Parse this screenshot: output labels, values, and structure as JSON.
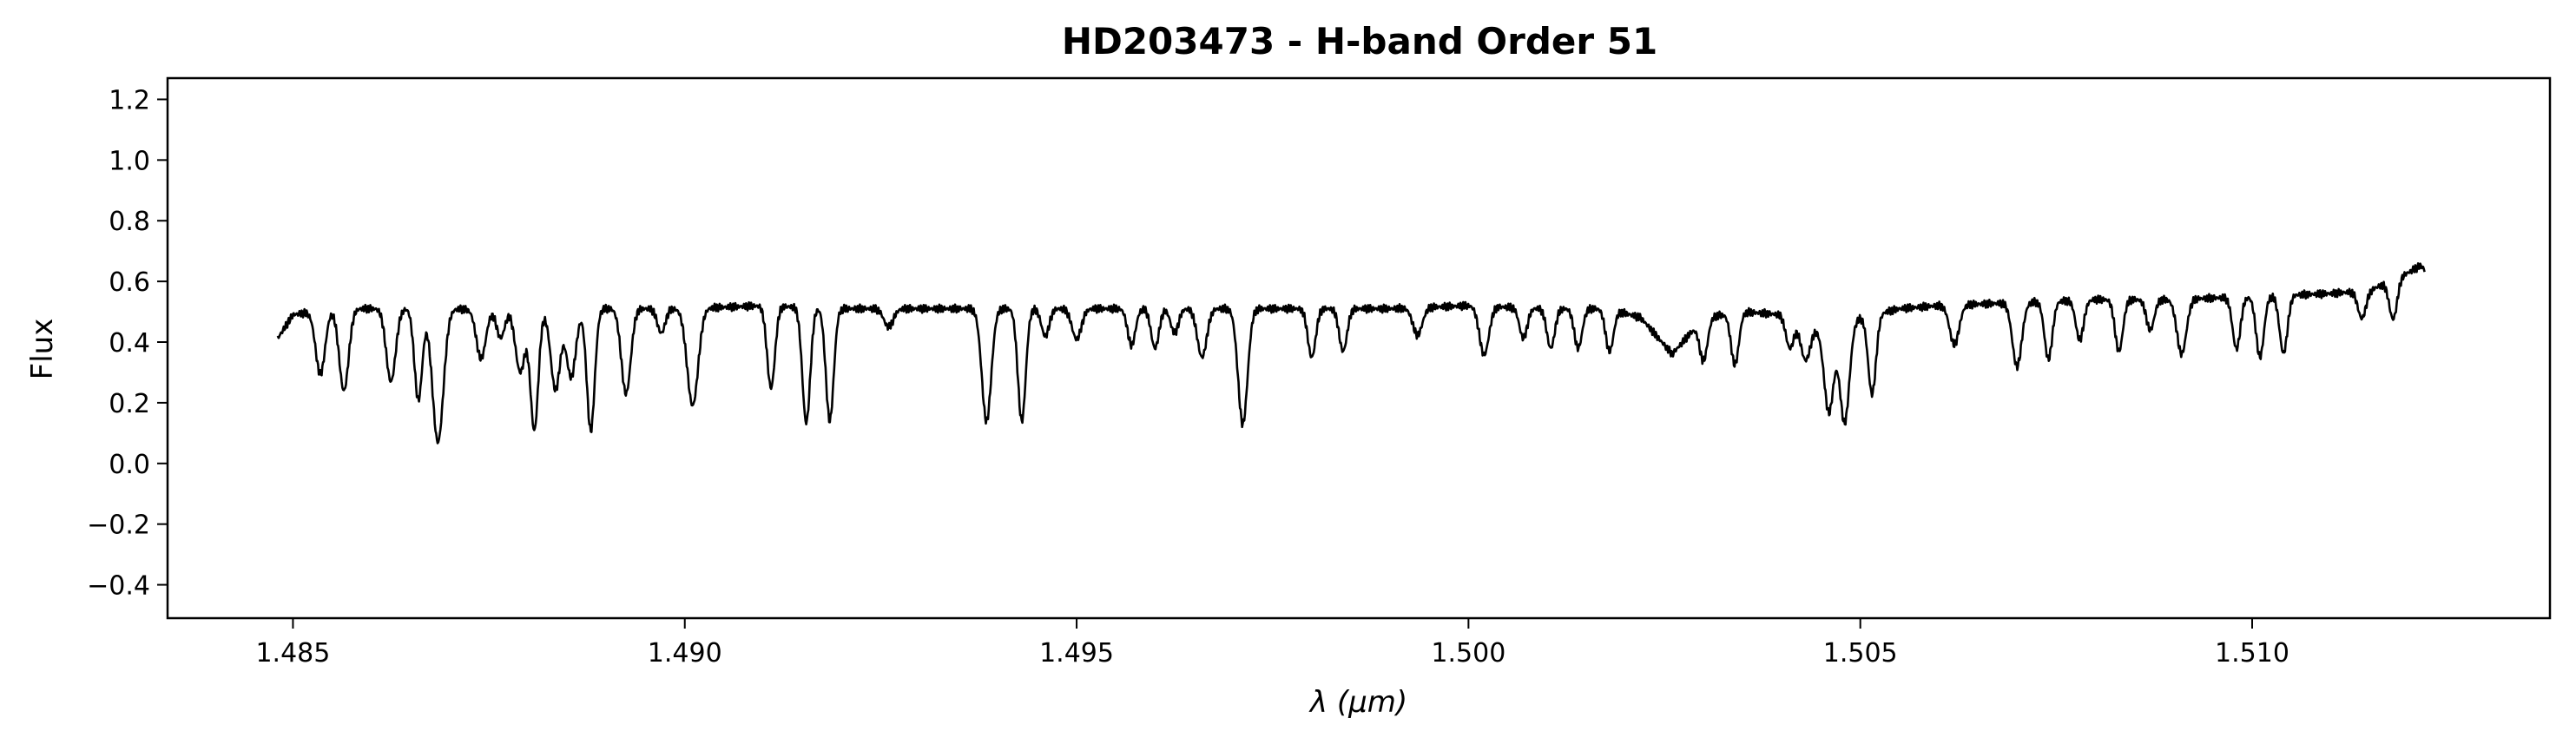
{
  "chart_data": {
    "type": "line",
    "title": "HD203473 - H-band Order 51",
    "xlabel": "λ (μm)",
    "ylabel": "Flux",
    "xlim": [
      1.4834,
      1.5138
    ],
    "ylim": [
      -0.51,
      1.27
    ],
    "xticks": [
      1.485,
      1.49,
      1.495,
      1.5,
      1.505,
      1.51
    ],
    "xtick_labels": [
      "1.485",
      "1.490",
      "1.495",
      "1.500",
      "1.505",
      "1.510"
    ],
    "yticks": [
      -0.4,
      -0.2,
      0.0,
      0.2,
      0.4,
      0.6,
      0.8,
      1.0,
      1.2
    ],
    "ytick_labels": [
      "−0.4",
      "−0.2",
      "0.0",
      "0.2",
      "0.4",
      "0.6",
      "0.8",
      "1.0",
      "1.2"
    ],
    "grid": false,
    "line_color": "#000000",
    "series": [
      {
        "baseline": [
          [
            1.4848,
            0.41
          ],
          [
            1.485,
            0.49
          ],
          [
            1.4855,
            0.51
          ],
          [
            1.486,
            0.51
          ],
          [
            1.487,
            0.51
          ],
          [
            1.488,
            0.5
          ],
          [
            1.489,
            0.51
          ],
          [
            1.49,
            0.51
          ],
          [
            1.491,
            0.52
          ],
          [
            1.492,
            0.51
          ],
          [
            1.493,
            0.51
          ],
          [
            1.494,
            0.51
          ],
          [
            1.495,
            0.51
          ],
          [
            1.496,
            0.51
          ],
          [
            1.497,
            0.51
          ],
          [
            1.498,
            0.51
          ],
          [
            1.499,
            0.51
          ],
          [
            1.5,
            0.52
          ],
          [
            1.501,
            0.51
          ],
          [
            1.5018,
            0.51
          ],
          [
            1.5022,
            0.48
          ],
          [
            1.5026,
            0.36
          ],
          [
            1.503,
            0.48
          ],
          [
            1.5035,
            0.5
          ],
          [
            1.504,
            0.49
          ],
          [
            1.5045,
            0.44
          ],
          [
            1.505,
            0.48
          ],
          [
            1.5055,
            0.51
          ],
          [
            1.506,
            0.52
          ],
          [
            1.507,
            0.53
          ],
          [
            1.508,
            0.54
          ],
          [
            1.509,
            0.54
          ],
          [
            1.51,
            0.55
          ],
          [
            1.511,
            0.56
          ],
          [
            1.5115,
            0.57
          ],
          [
            1.512,
            0.63
          ],
          [
            1.5122,
            0.66
          ]
        ],
        "absorption_lines": [
          [
            1.48535,
            0.21,
            6e-05
          ],
          [
            1.48565,
            0.27,
            6e-05
          ],
          [
            1.48625,
            0.24,
            6e-05
          ],
          [
            1.4866,
            0.3,
            5e-05
          ],
          [
            1.48685,
            0.44,
            7e-05
          ],
          [
            1.4874,
            0.16,
            6e-05
          ],
          [
            1.48765,
            0.09,
            5e-05
          ],
          [
            1.4879,
            0.2,
            6e-05
          ],
          [
            1.48808,
            0.39,
            5e-05
          ],
          [
            1.48835,
            0.26,
            6e-05
          ],
          [
            1.48855,
            0.22,
            6e-05
          ],
          [
            1.4888,
            0.4,
            5e-05
          ],
          [
            1.48925,
            0.28,
            6e-05
          ],
          [
            1.4897,
            0.08,
            5e-05
          ],
          [
            1.4901,
            0.32,
            7e-05
          ],
          [
            1.4911,
            0.27,
            5e-05
          ],
          [
            1.49155,
            0.38,
            5e-05
          ],
          [
            1.49185,
            0.37,
            5e-05
          ],
          [
            1.4926,
            0.06,
            6e-05
          ],
          [
            1.49385,
            0.37,
            6e-05
          ],
          [
            1.4943,
            0.37,
            5e-05
          ],
          [
            1.4946,
            0.09,
            5e-05
          ],
          [
            1.495,
            0.1,
            6e-05
          ],
          [
            1.4957,
            0.12,
            5e-05
          ],
          [
            1.496,
            0.13,
            5e-05
          ],
          [
            1.49625,
            0.08,
            5e-05
          ],
          [
            1.4966,
            0.16,
            6e-05
          ],
          [
            1.49712,
            0.38,
            6e-05
          ],
          [
            1.498,
            0.16,
            5e-05
          ],
          [
            1.4984,
            0.14,
            5e-05
          ],
          [
            1.49935,
            0.09,
            6e-05
          ],
          [
            1.5002,
            0.16,
            6e-05
          ],
          [
            1.5007,
            0.1,
            5e-05
          ],
          [
            1.50105,
            0.13,
            5e-05
          ],
          [
            1.5014,
            0.13,
            5e-05
          ],
          [
            1.5018,
            0.14,
            5e-05
          ],
          [
            1.503,
            0.14,
            5e-05
          ],
          [
            1.5034,
            0.17,
            5e-05
          ],
          [
            1.5041,
            0.1,
            5e-05
          ],
          [
            1.5043,
            0.12,
            6e-05
          ],
          [
            1.5046,
            0.28,
            6e-05
          ],
          [
            1.5048,
            0.33,
            6e-05
          ],
          [
            1.50515,
            0.26,
            5e-05
          ],
          [
            1.5062,
            0.13,
            6e-05
          ],
          [
            1.507,
            0.21,
            6e-05
          ],
          [
            1.5074,
            0.19,
            5e-05
          ],
          [
            1.5078,
            0.13,
            5e-05
          ],
          [
            1.5083,
            0.17,
            5e-05
          ],
          [
            1.5087,
            0.1,
            5e-05
          ],
          [
            1.5091,
            0.18,
            6e-05
          ],
          [
            1.5098,
            0.17,
            5e-05
          ],
          [
            1.5101,
            0.2,
            5e-05
          ],
          [
            1.5104,
            0.19,
            5e-05
          ],
          [
            1.5114,
            0.09,
            5e-05
          ],
          [
            1.5118,
            0.13,
            5e-05
          ],
          [
            1.5123,
            0.2,
            5e-05
          ]
        ]
      }
    ]
  }
}
